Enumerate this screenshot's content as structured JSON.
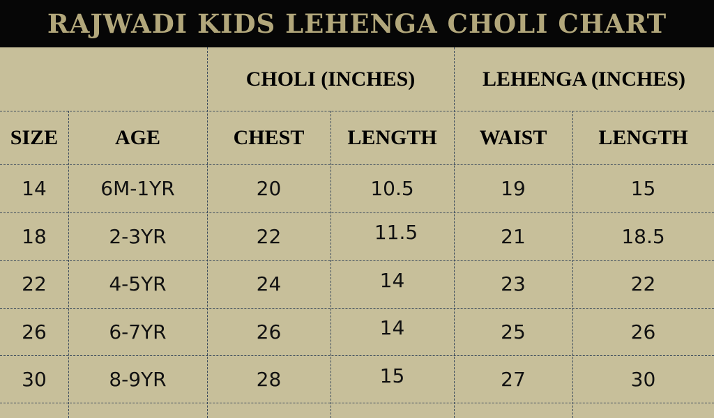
{
  "title": "RAJWADI KIDS LEHENGA CHOLI CHART",
  "group_headers": {
    "choli": "CHOLI (INCHES)",
    "lehenga": "LEHENGA (INCHES)"
  },
  "columns": [
    "SIZE",
    "AGE",
    "CHEST",
    "LENGTH",
    "WAIST",
    "LENGTH"
  ],
  "rows": [
    [
      "14",
      "6M-1YR",
      "20",
      "10.5",
      "19",
      "15"
    ],
    [
      "18",
      "2-3YR",
      "22",
      "11.5",
      "21",
      "18.5"
    ],
    [
      "22",
      "4-5YR",
      "24",
      "14",
      "23",
      "22"
    ],
    [
      "26",
      "6-7YR",
      "26",
      "14",
      "25",
      "26"
    ],
    [
      "30",
      "8-9YR",
      "28",
      "15",
      "27",
      "30"
    ]
  ],
  "colors": {
    "background": "#c7bf9a",
    "title_bar": "#060606",
    "title_text": "#b2a77b",
    "grid": "#3a4a5c"
  }
}
